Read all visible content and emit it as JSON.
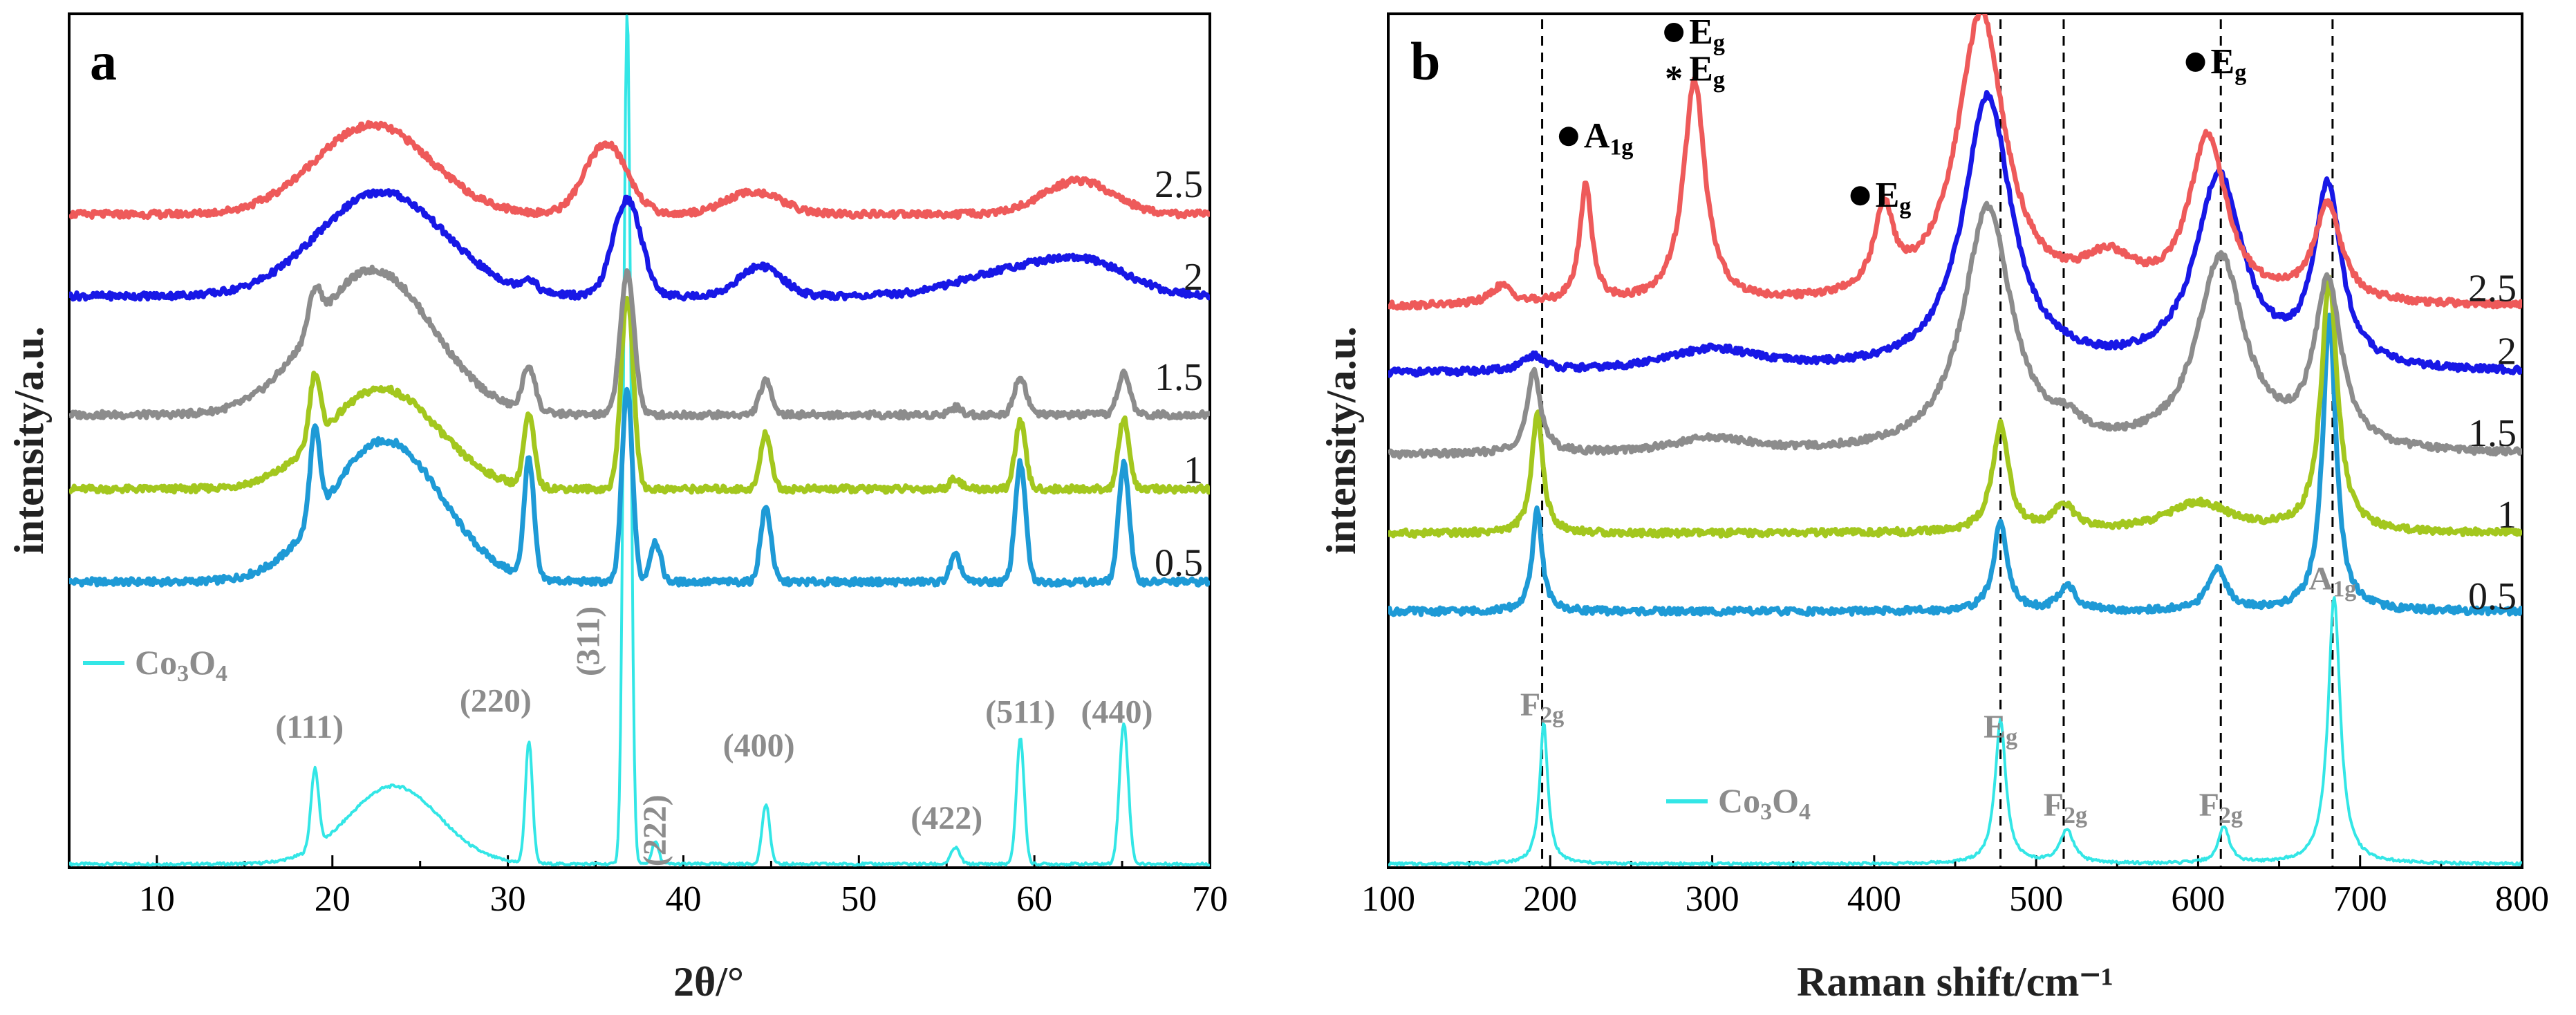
{
  "chart_data": [
    {
      "type": "line",
      "panel": "a",
      "xlabel": "2θ/°",
      "ylabel": "intensity/a.u.",
      "xlim": [
        5,
        70
      ],
      "ylim": [
        0,
        11.5
      ],
      "xticks": [
        10,
        20,
        30,
        40,
        50,
        60,
        70
      ],
      "legend": {
        "label_main": "Co",
        "sub1": "3",
        "mid": "O",
        "sub2": "4",
        "color": "#33e6e6",
        "position": "left, above Co3O4 trace"
      },
      "series": [
        {
          "name": "Co3O4",
          "color": "#33e6e6",
          "offset": 0.0,
          "base": 0.05,
          "bump": {
            "center": 23.5,
            "width": 2.6,
            "height": 1.05
          },
          "peaks": [
            [
              19.0,
              1.05,
              0.22
            ],
            [
              31.2,
              1.65,
              0.2
            ],
            [
              36.8,
              11.5,
              0.2
            ],
            [
              38.4,
              0.3,
              0.2
            ],
            [
              44.7,
              0.8,
              0.22
            ],
            [
              55.5,
              0.22,
              0.25
            ],
            [
              59.2,
              1.7,
              0.22
            ],
            [
              65.1,
              1.9,
              0.25
            ]
          ]
        },
        {
          "name": "0.5",
          "color": "#1e9ad6",
          "offset": 3.85,
          "base": 0.0,
          "bump": {
            "center": 23.0,
            "width": 3.2,
            "height": 1.9
          },
          "peaks": [
            [
              19.0,
              1.2,
              0.28
            ],
            [
              31.2,
              1.6,
              0.28
            ],
            [
              36.8,
              2.6,
              0.3
            ],
            [
              38.4,
              0.55,
              0.3
            ],
            [
              44.7,
              1.0,
              0.3
            ],
            [
              55.5,
              0.35,
              0.3
            ],
            [
              59.2,
              1.6,
              0.3
            ],
            [
              65.1,
              1.6,
              0.3
            ]
          ]
        },
        {
          "name": "1",
          "color": "#a3c71e",
          "offset": 5.1,
          "base": 0.0,
          "bump": {
            "center": 22.8,
            "width": 3.2,
            "height": 1.35
          },
          "peaks": [
            [
              19.0,
              0.9,
              0.3
            ],
            [
              31.2,
              0.95,
              0.3
            ],
            [
              36.8,
              2.6,
              0.35
            ],
            [
              44.7,
              0.75,
              0.3
            ],
            [
              55.5,
              0.15,
              0.3
            ],
            [
              59.2,
              0.9,
              0.3
            ],
            [
              65.1,
              0.95,
              0.3
            ]
          ]
        },
        {
          "name": "1.5",
          "color": "#8c8c8c",
          "offset": 6.1,
          "base": 0.0,
          "bump": {
            "center": 22.3,
            "width": 3.4,
            "height": 1.95
          },
          "peaks": [
            [
              19.0,
              0.5,
              0.35
            ],
            [
              31.2,
              0.6,
              0.35
            ],
            [
              36.8,
              1.9,
              0.4
            ],
            [
              44.7,
              0.45,
              0.35
            ],
            [
              55.5,
              0.1,
              0.35
            ],
            [
              59.2,
              0.5,
              0.35
            ],
            [
              65.1,
              0.55,
              0.35
            ]
          ]
        },
        {
          "name": "2",
          "color": "#1818e6",
          "offset": 7.7,
          "base": 0.0,
          "bump": {
            "center": 22.8,
            "width": 3.6,
            "height": 1.4
          },
          "peaks": [
            [
              31.2,
              0.15,
              0.4
            ],
            [
              36.8,
              1.3,
              0.8
            ],
            [
              44.4,
              0.4,
              1.2
            ],
            [
              58.5,
              0.3,
              3.0
            ],
            [
              63.0,
              0.4,
              2.5
            ]
          ]
        },
        {
          "name": "2.5",
          "color": "#ee5a5a",
          "offset": 8.8,
          "base": 0.0,
          "bump": {
            "center": 22.3,
            "width": 3.3,
            "height": 1.2
          },
          "peaks": [
            [
              35.6,
              0.95,
              1.2
            ],
            [
              44.0,
              0.3,
              1.6
            ],
            [
              62.5,
              0.45,
              2.0
            ]
          ]
        }
      ],
      "curve_labels": [
        {
          "text": "2.5",
          "y": 9.2
        },
        {
          "text": "2",
          "y": 7.95
        },
        {
          "text": "1.5",
          "y": 6.6
        },
        {
          "text": "1",
          "y": 5.35
        },
        {
          "text": "0.5",
          "y": 4.1
        }
      ],
      "annotations": [
        {
          "text": "(111)",
          "x": 18.7,
          "y": 1.75
        },
        {
          "text": "(220)",
          "x": 29.3,
          "y": 2.1
        },
        {
          "text": "(311)",
          "x": 35.2,
          "y": 3.05,
          "rotate": true
        },
        {
          "text": "(222)",
          "x": 39.0,
          "y": 0.5,
          "rotate": true
        },
        {
          "text": "(400)",
          "x": 44.3,
          "y": 1.5
        },
        {
          "text": "(422)",
          "x": 55.0,
          "y": 0.52
        },
        {
          "text": "(511)",
          "x": 59.2,
          "y": 1.95
        },
        {
          "text": "(440)",
          "x": 64.7,
          "y": 1.95
        }
      ]
    },
    {
      "type": "line",
      "panel": "b",
      "xlabel": "Raman shift/cm⁻¹",
      "ylabel": "intensity/a.u.",
      "xlim": [
        100,
        800
      ],
      "ylim": [
        0,
        11.5
      ],
      "xticks": [
        100,
        200,
        300,
        400,
        500,
        600,
        700,
        800
      ],
      "dashed_lines": [
        195,
        478,
        517,
        614,
        683
      ],
      "legend": {
        "label_main": "Co",
        "sub1": "3",
        "mid": "O",
        "sub2": "4",
        "color": "#33e6e6",
        "position": "bottom-center"
      },
      "series": [
        {
          "name": "Co3O4",
          "color": "#33e6e6",
          "offset": 0.05,
          "base": 0.0,
          "peaks": [
            [
              196,
              1.9,
              3.0
            ],
            [
              478,
              1.95,
              4.0
            ],
            [
              519,
              0.45,
              5.0
            ],
            [
              616,
              0.5,
              4.0
            ],
            [
              684,
              3.6,
              4.5
            ]
          ]
        },
        {
          "name": "0.5",
          "color": "#1e9ad6",
          "offset": 3.45,
          "base": 0.0,
          "peaks": [
            [
              192,
              1.4,
              3.5
            ],
            [
              478,
              1.2,
              5.0
            ],
            [
              519,
              0.35,
              6.0
            ],
            [
              612,
              0.55,
              7.0
            ],
            [
              681,
              3.95,
              5.0
            ]
          ]
        },
        {
          "name": "1",
          "color": "#a3c71e",
          "offset": 4.5,
          "base": 0.0,
          "peaks": [
            [
              192,
              1.65,
              4.0
            ],
            [
              478,
              1.45,
              6.0
            ],
            [
              517,
              0.35,
              8.0
            ],
            [
              600,
              0.4,
              25.0
            ],
            [
              681,
              3.4,
              6.0
            ]
          ]
        },
        {
          "name": "1.5",
          "color": "#8c8c8c",
          "offset": 5.55,
          "base": 0.0,
          "peaks": [
            [
              190,
              1.1,
              5.0
            ],
            [
              300,
              0.2,
              30.0
            ],
            [
              470,
              3.3,
              18.0
            ],
            [
              520,
              0.2,
              10.0
            ],
            [
              614,
              2.6,
              18.0
            ],
            [
              680,
              2.2,
              10.0
            ]
          ]
        },
        {
          "name": "2",
          "color": "#1818e6",
          "offset": 6.65,
          "base": 0.0,
          "peaks": [
            [
              190,
              0.2,
              8.0
            ],
            [
              300,
              0.3,
              35.0
            ],
            [
              470,
              3.7,
              18.0
            ],
            [
              613,
              2.6,
              18.0
            ],
            [
              680,
              2.4,
              10.0
            ]
          ]
        },
        {
          "name": "2.5",
          "color": "#ee5a5a",
          "offset": 7.55,
          "base": 0.0,
          "peaks": [
            [
              170,
              0.25,
              8.0
            ],
            [
              222,
              1.6,
              4.5
            ],
            [
              289,
              3.0,
              8.0
            ],
            [
              406,
              1.1,
              7.0
            ],
            [
              466,
              3.9,
              18.0
            ],
            [
              545,
              0.5,
              20.0
            ],
            [
              606,
              2.2,
              14.0
            ],
            [
              680,
              1.3,
              10.0
            ]
          ]
        }
      ],
      "curve_labels": [
        {
          "text": "2.5",
          "y": 7.8
        },
        {
          "text": "2",
          "y": 6.95
        },
        {
          "text": "1.5",
          "y": 5.85
        },
        {
          "text": "1",
          "y": 4.75
        },
        {
          "text": "0.5",
          "y": 3.65
        }
      ],
      "annotations_gray": [
        {
          "main": "F",
          "sub": "2g",
          "x": 195,
          "y": 2.05
        },
        {
          "main": "E",
          "sub": "g",
          "x": 478,
          "y": 1.75
        },
        {
          "main": "F",
          "sub": "2g",
          "x": 518,
          "y": 0.7
        },
        {
          "main": "F",
          "sub": "2g",
          "x": 614,
          "y": 0.7
        },
        {
          "main": "A",
          "sub": "1g",
          "x": 683,
          "y": 3.75
        }
      ],
      "annotations_black": [
        {
          "main": "A",
          "sub": "1g",
          "x": 225,
          "y": 9.7,
          "dot": true
        },
        {
          "main": "E",
          "sub": "g",
          "x": 290,
          "y": 11.1,
          "dot": true
        },
        {
          "main": "E",
          "sub": "g",
          "x": 290,
          "y": 10.6,
          "star": true
        },
        {
          "main": "E",
          "sub": "g",
          "x": 405,
          "y": 8.9,
          "dot": true
        },
        {
          "main": "E",
          "sub": "g",
          "x": 612,
          "y": 10.7,
          "dot": true
        }
      ]
    }
  ]
}
